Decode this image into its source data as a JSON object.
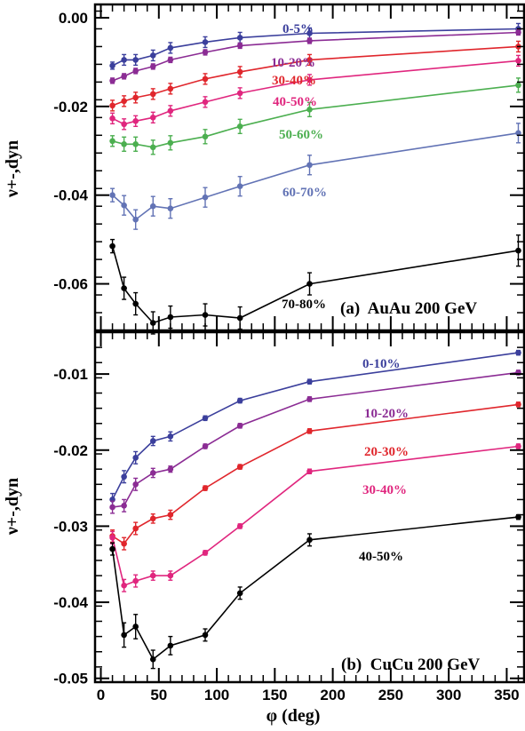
{
  "chart_data": [
    {
      "type": "line",
      "panel_label": "(a)  AuAu 200 GeV",
      "xlabel": "",
      "ylabel": "ν+-,dyn",
      "xlim": [
        -5,
        365
      ],
      "ylim": [
        -0.0705,
        0.003
      ],
      "yticks": [
        "0.00",
        "-0.02",
        "-0.04",
        "-0.06"
      ],
      "ytick_values": [
        0,
        -0.02,
        -0.04,
        -0.06
      ],
      "x": [
        10,
        20,
        30,
        45,
        60,
        90,
        120,
        180,
        360
      ],
      "series": [
        {
          "name": "0-5%",
          "color": "#3b3f9c",
          "values": [
            -0.0108,
            -0.0095,
            -0.0095,
            -0.0085,
            -0.0068,
            -0.0055,
            -0.0045,
            -0.0035,
            -0.0025
          ],
          "errors": [
            0.0008,
            0.0012,
            0.0012,
            0.0012,
            0.0012,
            0.0012,
            0.0012,
            0.0012,
            0.0012
          ]
        },
        {
          "name": "10-20%",
          "color": "#8b2c94",
          "values": [
            -0.0142,
            -0.0132,
            -0.012,
            -0.011,
            -0.0095,
            -0.0078,
            -0.0063,
            -0.0052,
            -0.0033
          ],
          "errors": [
            0.0006,
            0.0006,
            0.0006,
            0.0006,
            0.0006,
            0.0006,
            0.0006,
            0.0006,
            0.0006
          ]
        },
        {
          "name": "30-40%",
          "color": "#e0262c",
          "values": [
            -0.0198,
            -0.0188,
            -0.018,
            -0.0172,
            -0.016,
            -0.0138,
            -0.0122,
            -0.0095,
            -0.0065
          ],
          "errors": [
            0.0012,
            0.0012,
            0.0012,
            0.0012,
            0.0012,
            0.0012,
            0.0012,
            0.0012,
            0.0012
          ]
        },
        {
          "name": "40-50%",
          "color": "#e0267e",
          "values": [
            -0.0227,
            -0.024,
            -0.0233,
            -0.0225,
            -0.021,
            -0.019,
            -0.017,
            -0.014,
            -0.0097
          ],
          "errors": [
            0.0012,
            0.0012,
            0.0012,
            0.0012,
            0.0012,
            0.0012,
            0.0012,
            0.0012,
            0.0012
          ]
        },
        {
          "name": "50-60%",
          "color": "#4caf50",
          "values": [
            -0.0278,
            -0.0285,
            -0.0285,
            -0.0292,
            -0.0282,
            -0.0268,
            -0.0245,
            -0.0207,
            -0.0152
          ],
          "errors": [
            0.0012,
            0.0016,
            0.0016,
            0.0016,
            0.0016,
            0.0016,
            0.0016,
            0.0016,
            0.0016
          ]
        },
        {
          "name": "60-70%",
          "color": "#6273b5",
          "values": [
            -0.04,
            -0.0423,
            -0.0455,
            -0.0425,
            -0.043,
            -0.0405,
            -0.038,
            -0.0332,
            -0.026
          ],
          "errors": [
            0.0015,
            0.0022,
            0.0022,
            0.0022,
            0.0022,
            0.0022,
            0.0022,
            0.0022,
            0.0022
          ]
        },
        {
          "name": "70-80%",
          "color": "#000000",
          "values": [
            -0.0515,
            -0.061,
            -0.0645,
            -0.0688,
            -0.0675,
            -0.067,
            -0.0677,
            -0.06,
            -0.0525
          ],
          "errors": [
            0.0015,
            0.0025,
            0.0025,
            0.0025,
            0.0025,
            0.0025,
            0.0025,
            0.0025,
            0.0035
          ]
        }
      ]
    },
    {
      "type": "line",
      "panel_label": "(b)  CuCu 200 GeV",
      "xlabel": "φ (deg)",
      "ylabel": "ν+-,dyn",
      "xlim": [
        -5,
        365
      ],
      "ylim": [
        -0.0505,
        -0.0045
      ],
      "yticks": [
        "-0.01",
        "-0.02",
        "-0.03",
        "-0.04",
        "-0.05"
      ],
      "ytick_values": [
        -0.01,
        -0.02,
        -0.03,
        -0.04,
        -0.05
      ],
      "xticks": [
        "0",
        "50",
        "100",
        "150",
        "200",
        "250",
        "300",
        "350"
      ],
      "xtick_values": [
        0,
        50,
        100,
        150,
        200,
        250,
        300,
        350
      ],
      "x": [
        10,
        20,
        30,
        45,
        60,
        90,
        120,
        180,
        360
      ],
      "series": [
        {
          "name": "0-10%",
          "color": "#3b3f9c",
          "values": [
            -0.0265,
            -0.0235,
            -0.021,
            -0.0188,
            -0.0182,
            -0.0158,
            -0.0135,
            -0.011,
            -0.0072
          ],
          "errors": [
            0.0008,
            0.0008,
            0.0008,
            0.0006,
            0.0006,
            0.0003,
            0.0003,
            0.0003,
            0.0003
          ]
        },
        {
          "name": "10-20%",
          "color": "#8b2c94",
          "values": [
            -0.0275,
            -0.0273,
            -0.0245,
            -0.023,
            -0.0225,
            -0.0195,
            -0.0168,
            -0.0133,
            -0.0098
          ],
          "errors": [
            0.0008,
            0.0008,
            0.0008,
            0.0006,
            0.0004,
            0.0003,
            0.0003,
            0.0003,
            0.0003
          ]
        },
        {
          "name": "20-30%",
          "color": "#e0262c",
          "values": [
            -0.0313,
            -0.0323,
            -0.0303,
            -0.029,
            -0.0285,
            -0.025,
            -0.0222,
            -0.0175,
            -0.014
          ],
          "errors": [
            0.0008,
            0.0008,
            0.0008,
            0.0006,
            0.0006,
            0.0003,
            0.0003,
            0.0003,
            0.0003
          ]
        },
        {
          "name": "30-40%",
          "color": "#e0267e",
          "values": [
            -0.0315,
            -0.0378,
            -0.0372,
            -0.0365,
            -0.0365,
            -0.0335,
            -0.03,
            -0.0228,
            -0.0195
          ],
          "errors": [
            0.0008,
            0.0008,
            0.0008,
            0.0006,
            0.0006,
            0.0003,
            0.0003,
            0.0003,
            0.0003
          ]
        },
        {
          "name": "40-50%",
          "color": "#000000",
          "values": [
            -0.033,
            -0.0443,
            -0.0432,
            -0.0475,
            -0.0457,
            -0.0443,
            -0.0388,
            -0.0318,
            -0.0288
          ],
          "errors": [
            0.0008,
            0.0016,
            0.0016,
            0.0012,
            0.0012,
            0.0008,
            0.0008,
            0.0008,
            0.0003
          ]
        }
      ]
    }
  ]
}
